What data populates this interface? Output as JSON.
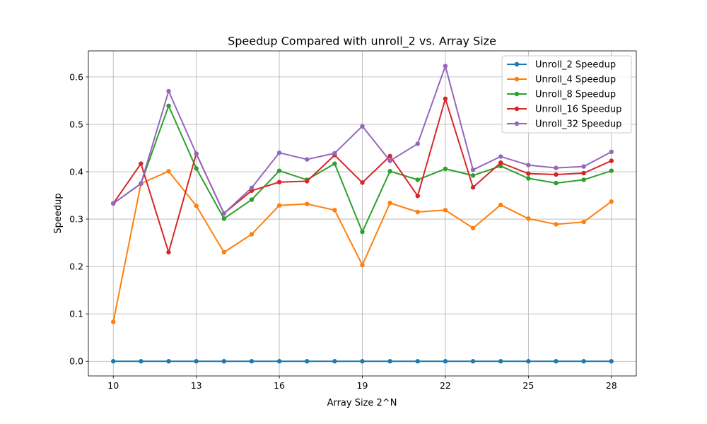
{
  "chart_data": {
    "type": "line",
    "title": "Speedup Compared with unroll_2 vs. Array Size",
    "xlabel": "Array Size 2^N",
    "ylabel": "Speedup",
    "x": [
      10,
      11,
      12,
      13,
      14,
      15,
      16,
      17,
      18,
      19,
      20,
      21,
      22,
      23,
      24,
      25,
      26,
      27,
      28
    ],
    "xticks": [
      10,
      13,
      16,
      19,
      22,
      25,
      28
    ],
    "yticks": [
      0.0,
      0.1,
      0.2,
      0.3,
      0.4,
      0.5,
      0.6
    ],
    "xlim": [
      9.1,
      28.9
    ],
    "ylim": [
      -0.031,
      0.655
    ],
    "grid": true,
    "legend_position": "top-right",
    "series": [
      {
        "name": "Unroll_2 Speedup",
        "color": "#1f77b4",
        "values": [
          0,
          0,
          0,
          0,
          0,
          0,
          0,
          0,
          0,
          0,
          0,
          0,
          0,
          0,
          0,
          0,
          0,
          0,
          0
        ]
      },
      {
        "name": "Unroll_4 Speedup",
        "color": "#ff7f0e",
        "values": [
          0.083,
          0.375,
          0.401,
          0.328,
          0.23,
          0.268,
          0.329,
          0.332,
          0.319,
          0.203,
          0.334,
          0.315,
          0.319,
          0.281,
          0.33,
          0.301,
          0.289,
          0.294,
          0.337
        ]
      },
      {
        "name": "Unroll_8 Speedup",
        "color": "#2ca02c",
        "values": [
          0.333,
          0.375,
          0.539,
          0.407,
          0.301,
          0.341,
          0.402,
          0.383,
          0.417,
          0.273,
          0.401,
          0.383,
          0.406,
          0.392,
          0.412,
          0.386,
          0.376,
          0.383,
          0.402
        ]
      },
      {
        "name": "Unroll_16 Speedup",
        "color": "#d62728",
        "values": [
          0.333,
          0.417,
          0.23,
          0.438,
          0.312,
          0.36,
          0.378,
          0.38,
          0.435,
          0.377,
          0.433,
          0.349,
          0.554,
          0.367,
          0.419,
          0.396,
          0.394,
          0.397,
          0.423
        ]
      },
      {
        "name": "Unroll_32 Speedup",
        "color": "#9467bd",
        "values": [
          0.333,
          0.375,
          0.57,
          0.438,
          0.312,
          0.366,
          0.44,
          0.426,
          0.439,
          0.496,
          0.423,
          0.459,
          0.623,
          0.404,
          0.432,
          0.414,
          0.408,
          0.411,
          0.442
        ]
      }
    ]
  }
}
